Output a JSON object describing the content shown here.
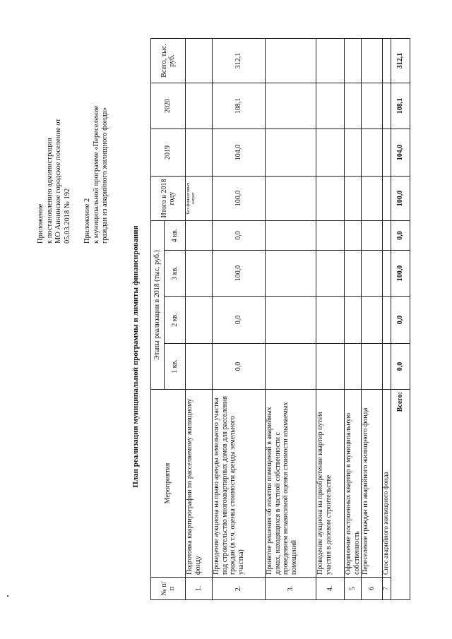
{
  "header": {
    "lines1": [
      "Приложение",
      "к постановлению администрации",
      "МО Аннинское городское поселение от",
      "05.03.2018 № 192"
    ],
    "lines2": [
      "Приложение 2",
      "к муниципальной программе «Переселение",
      "граждан из аварийного жилищного фонда»"
    ]
  },
  "title": "План реализации муниципальной программы и лимиты финансирования",
  "table": {
    "col_no": "№ п/п",
    "col_event": "Мероприятия",
    "col_stages": "Этапы реализации в 2018 (тыс. руб.)",
    "quarters": [
      "1 кв.",
      "2 кв.",
      "3 кв.",
      "4 кв."
    ],
    "col_total2018": "Итого в 2018 году",
    "col_2019": "2019",
    "col_2020": "2020",
    "col_total": "Всего, тыс. руб.",
    "rows": [
      {
        "no": "1.",
        "name": "Подготовка квартирографии по расселяемому жилищному фонду",
        "q1": "",
        "q2": "",
        "q3": "",
        "q4": "",
        "t2018": "Без финансовых затрат",
        "y2019": "",
        "y2020": "",
        "total": ""
      },
      {
        "no": "2.",
        "name": "Проведение аукциона на право аренды земельного участка под строительство многоквартирных домов для расселения граждан (в т.ч. оценка стоимости аренды земельного участка)",
        "q1": "0,0",
        "q2": "0,0",
        "q3": "100,0",
        "q4": "0,0",
        "t2018": "100,0",
        "y2019": "104,0",
        "y2020": "108,1",
        "total": "312,1"
      },
      {
        "no": "3.",
        "name": "Принятие решения об изъятии помещений в аварийных домах, находящихся в частной собственности с проведением независимой оценки стоимости изымаемых помещений",
        "q1": "",
        "q2": "",
        "q3": "",
        "q4": "",
        "t2018": "",
        "y2019": "",
        "y2020": "",
        "total": ""
      },
      {
        "no": "4.",
        "name": "Проведение аукциона на приобретение квартир путем участия в долевом строительстве",
        "q1": "",
        "q2": "",
        "q3": "",
        "q4": "",
        "t2018": "",
        "y2019": "",
        "y2020": "",
        "total": ""
      },
      {
        "no": "5",
        "name": "Оформление построенных квартир в муниципальную собственность",
        "q1": "",
        "q2": "",
        "q3": "",
        "q4": "",
        "t2018": "",
        "y2019": "",
        "y2020": "",
        "total": ""
      },
      {
        "no": "6",
        "name": "Переселение граждан из аварийного жилищного фонда",
        "q1": "",
        "q2": "",
        "q3": "",
        "q4": "",
        "t2018": "",
        "y2019": "",
        "y2020": "",
        "total": ""
      },
      {
        "no": "7",
        "name": "Снос аварийного жилищного фонда",
        "q1": "",
        "q2": "",
        "q3": "",
        "q4": "",
        "t2018": "",
        "y2019": "",
        "y2020": "",
        "total": ""
      }
    ],
    "totals": {
      "label": "Всего:",
      "q1": "0,0",
      "q2": "0,0",
      "q3": "100,0",
      "q4": "0,0",
      "t2018": "100,0",
      "y2019": "104,0",
      "y2020": "108,1",
      "total": "312,1"
    }
  }
}
